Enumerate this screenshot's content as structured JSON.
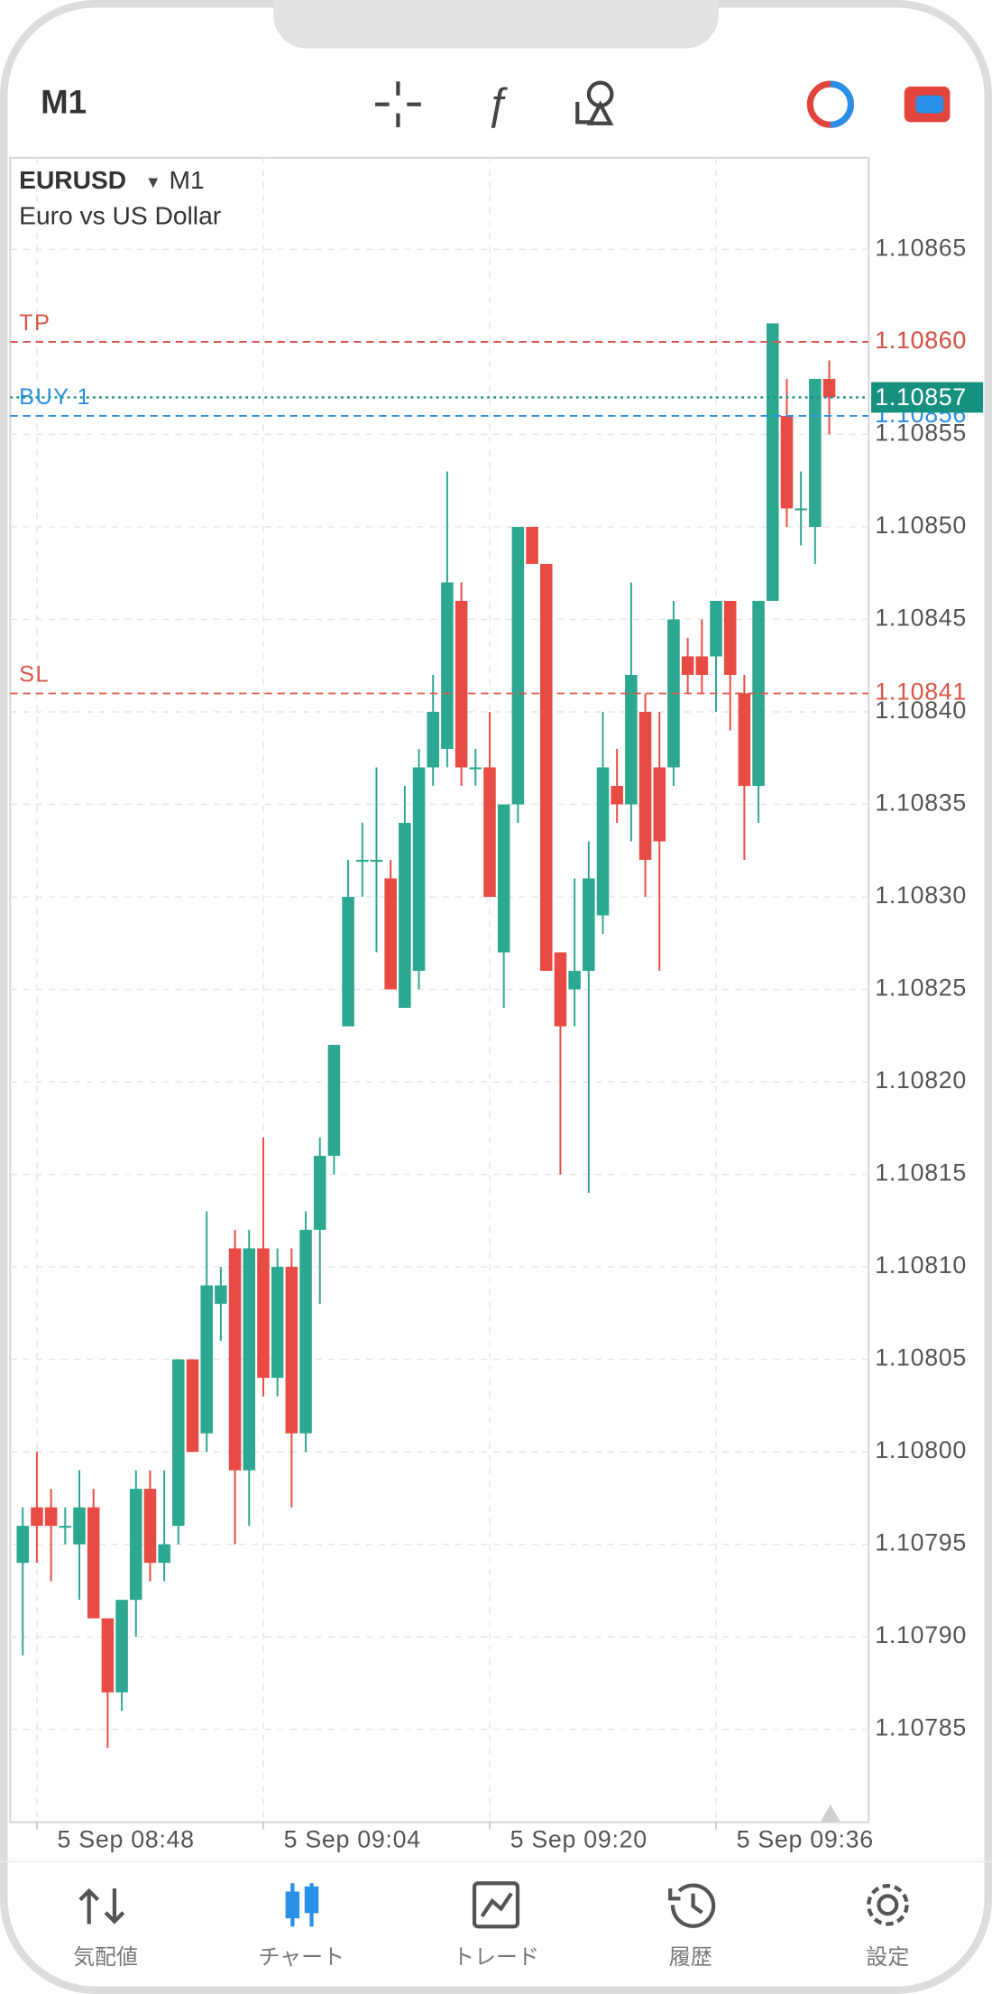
{
  "header": {
    "timeframe": "M1"
  },
  "chart_data": {
    "type": "candlestick",
    "symbol": "EURUSD",
    "timeframe": "M1",
    "description": "Euro vs US Dollar",
    "categories": [
      null,
      "5 Sep 08:48",
      null,
      null,
      null,
      null,
      null,
      null,
      null,
      null,
      null,
      null,
      null,
      null,
      null,
      null,
      null,
      "5 Sep 09:04",
      null,
      null,
      null,
      null,
      null,
      null,
      null,
      null,
      null,
      null,
      null,
      null,
      null,
      null,
      null,
      "5 Sep 09:20",
      null,
      null,
      null,
      null,
      null,
      null,
      null,
      null,
      null,
      null,
      null,
      null,
      null,
      null,
      null,
      "5 Sep 09:36",
      null,
      null,
      null,
      null,
      null,
      null,
      null,
      null
    ],
    "open": [
      1.10794,
      1.10797,
      1.10797,
      1.10796,
      1.10795,
      1.10797,
      1.10791,
      1.10787,
      1.10792,
      1.10798,
      1.10794,
      1.10796,
      1.10805,
      1.10801,
      1.10808,
      1.10811,
      1.10799,
      1.10811,
      1.10804,
      1.1081,
      1.10801,
      1.10812,
      1.10816,
      1.10823,
      1.10832,
      1.10832,
      1.10831,
      1.10824,
      1.10826,
      1.10837,
      1.10838,
      1.10846,
      1.10837,
      1.10837,
      1.10827,
      1.10835,
      1.1085,
      1.10848,
      1.10827,
      1.10825,
      1.10826,
      1.10829,
      1.10836,
      1.10835,
      1.1084,
      1.10837,
      1.10837,
      1.10843,
      1.10843,
      1.10843,
      1.10846,
      1.10841,
      1.10836,
      1.10846,
      1.10856,
      1.10851,
      1.1085,
      1.10858
    ],
    "high": [
      1.10797,
      1.108,
      1.10798,
      1.10797,
      1.10799,
      1.10798,
      1.10791,
      1.10792,
      1.10799,
      1.10799,
      1.10799,
      1.10805,
      1.10805,
      1.10813,
      1.1081,
      1.10812,
      1.10812,
      1.10817,
      1.10811,
      1.10811,
      1.10813,
      1.10817,
      1.10822,
      1.10832,
      1.10834,
      1.10837,
      1.10832,
      1.10836,
      1.10838,
      1.10842,
      1.10853,
      1.10847,
      1.10838,
      1.1084,
      1.10835,
      1.1085,
      1.1085,
      1.10848,
      1.10827,
      1.10831,
      1.10833,
      1.1084,
      1.10838,
      1.10847,
      1.10841,
      1.1084,
      1.10846,
      1.10844,
      1.10845,
      1.10846,
      1.10846,
      1.10842,
      1.10846,
      1.10861,
      1.10858,
      1.10853,
      1.10858,
      1.10859
    ],
    "low": [
      1.10789,
      1.10794,
      1.10793,
      1.10795,
      1.10792,
      1.10791,
      1.10784,
      1.10786,
      1.1079,
      1.10793,
      1.10793,
      1.10795,
      1.108,
      1.108,
      1.10806,
      1.10795,
      1.10796,
      1.10803,
      1.10803,
      1.10797,
      1.108,
      1.10808,
      1.10815,
      1.10823,
      1.1083,
      1.10827,
      1.10825,
      1.10824,
      1.10825,
      1.10836,
      1.10837,
      1.10836,
      1.10836,
      1.1083,
      1.10824,
      1.10834,
      1.10848,
      1.10826,
      1.10815,
      1.10823,
      1.10814,
      1.10828,
      1.10834,
      1.10833,
      1.1083,
      1.10826,
      1.10836,
      1.10841,
      1.10841,
      1.1084,
      1.10839,
      1.10832,
      1.10834,
      1.10846,
      1.1085,
      1.10849,
      1.10848,
      1.10855
    ],
    "close": [
      1.10796,
      1.10796,
      1.10796,
      1.10796,
      1.10797,
      1.10791,
      1.10787,
      1.10792,
      1.10798,
      1.10794,
      1.10795,
      1.10805,
      1.108,
      1.10809,
      1.10809,
      1.10799,
      1.10811,
      1.10804,
      1.1081,
      1.10801,
      1.10812,
      1.10816,
      1.10822,
      1.1083,
      1.10832,
      1.10832,
      1.10825,
      1.10834,
      1.10837,
      1.1084,
      1.10847,
      1.10837,
      1.10837,
      1.1083,
      1.10835,
      1.1085,
      1.10848,
      1.10826,
      1.10823,
      1.10826,
      1.10831,
      1.10837,
      1.10835,
      1.10842,
      1.10832,
      1.10833,
      1.10845,
      1.10842,
      1.10842,
      1.10846,
      1.10842,
      1.10836,
      1.10846,
      1.10861,
      1.10851,
      1.10851,
      1.10858,
      1.10857
    ],
    "up_color": "#2ca891",
    "down_color": "#e84b43",
    "ylim": [
      1.1078,
      1.1087
    ],
    "yticks": [
      {
        "value": 1.10785,
        "label": "1.10785"
      },
      {
        "value": 1.1079,
        "label": "1.10790"
      },
      {
        "value": 1.10795,
        "label": "1.10795"
      },
      {
        "value": 1.108,
        "label": "1.10800"
      },
      {
        "value": 1.10805,
        "label": "1.10805"
      },
      {
        "value": 1.1081,
        "label": "1.10810"
      },
      {
        "value": 1.10815,
        "label": "1.10815"
      },
      {
        "value": 1.1082,
        "label": "1.10820"
      },
      {
        "value": 1.10825,
        "label": "1.10825"
      },
      {
        "value": 1.1083,
        "label": "1.10830"
      },
      {
        "value": 1.10835,
        "label": "1.10835"
      },
      {
        "value": 1.1084,
        "label": "1.10840"
      },
      {
        "value": 1.10845,
        "label": "1.10845"
      },
      {
        "value": 1.1085,
        "label": "1.10850"
      },
      {
        "value": 1.10855,
        "label": "1.10855"
      },
      {
        "value": 1.1086,
        "label": "1.10860"
      },
      {
        "value": 1.10865,
        "label": "1.10865"
      }
    ],
    "grid": true,
    "levels": [
      {
        "name": "TP",
        "value": 1.1086,
        "value_label": "1.10860",
        "color": "#d9574a"
      },
      {
        "name": "SL",
        "value": 1.10841,
        "color": "#d9574a"
      },
      {
        "name": "BUY 1",
        "value": 1.10856,
        "color": "#2a8fe6"
      }
    ],
    "current_price": {
      "value": 1.10857,
      "color": "#17917f"
    }
  },
  "nav": {
    "items": [
      "気配値",
      "チャート",
      "トレード",
      "履歴",
      "設定"
    ],
    "active": 1
  }
}
